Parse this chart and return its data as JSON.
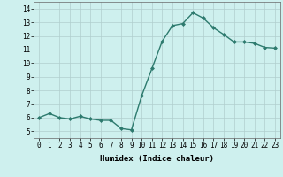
{
  "x": [
    0,
    1,
    2,
    3,
    4,
    5,
    6,
    7,
    8,
    9,
    10,
    11,
    12,
    13,
    14,
    15,
    16,
    17,
    18,
    19,
    20,
    21,
    22,
    23
  ],
  "y": [
    6.0,
    6.3,
    6.0,
    5.9,
    6.1,
    5.9,
    5.8,
    5.8,
    5.2,
    5.1,
    7.6,
    9.6,
    11.6,
    12.75,
    12.9,
    13.7,
    13.3,
    12.6,
    12.1,
    11.55,
    11.55,
    11.45,
    11.15,
    11.1
  ],
  "line_color": "#2d7a6e",
  "marker": "D",
  "marker_size": 2.0,
  "bg_color": "#cef0ee",
  "grid_color": "#b0cece",
  "xlabel": "Humidex (Indice chaleur)",
  "xlim": [
    -0.5,
    23.5
  ],
  "ylim": [
    4.5,
    14.5
  ],
  "yticks": [
    5,
    6,
    7,
    8,
    9,
    10,
    11,
    12,
    13,
    14
  ],
  "xticks": [
    0,
    1,
    2,
    3,
    4,
    5,
    6,
    7,
    8,
    9,
    10,
    11,
    12,
    13,
    14,
    15,
    16,
    17,
    18,
    19,
    20,
    21,
    22,
    23
  ],
  "tick_fontsize": 5.5,
  "label_fontsize": 6.5,
  "line_width": 1.0
}
